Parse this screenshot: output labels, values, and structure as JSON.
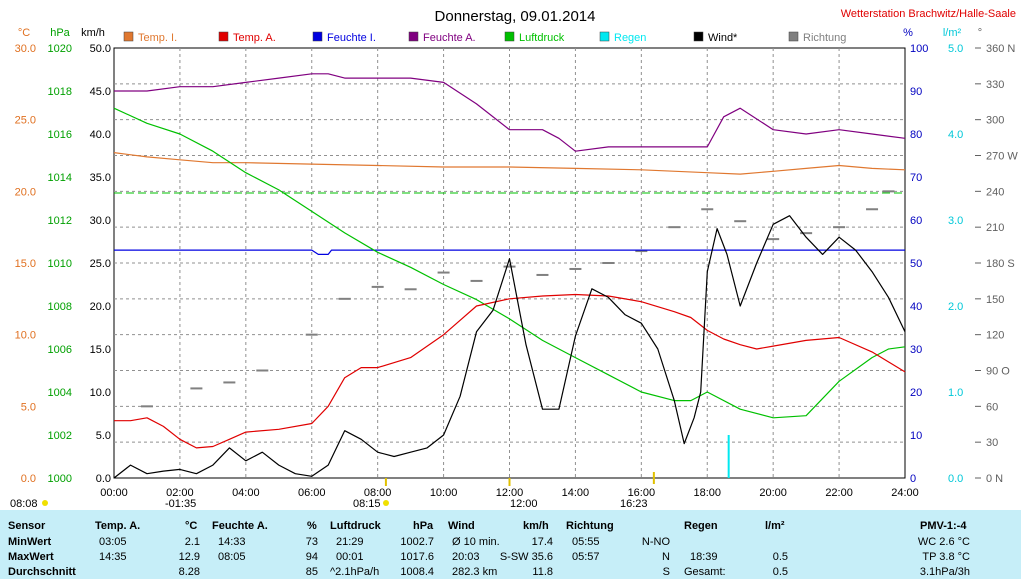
{
  "chart_data": {
    "type": "line",
    "title": "Donnerstag, 09.01.2014",
    "station": "Wetterstation Brachwitz/Halle-Saale",
    "xlabel": "",
    "x_ticks": [
      "00:00",
      "02:00",
      "04:00",
      "06:00",
      "08:00",
      "10:00",
      "12:00",
      "14:00",
      "16:00",
      "18:00",
      "20:00",
      "22:00",
      "24:00"
    ],
    "axes": {
      "temp": {
        "unit": "°C",
        "ticks": [
          "0.0",
          "5.0",
          "10.0",
          "15.0",
          "20.0",
          "25.0",
          "30.0"
        ],
        "range": [
          0,
          30
        ],
        "color": "#e07020"
      },
      "pressure": {
        "unit": "hPa",
        "ticks": [
          "1000",
          "1002",
          "1004",
          "1006",
          "1008",
          "1010",
          "1012",
          "1014",
          "1016",
          "1018",
          "1020"
        ],
        "range": [
          1000,
          1020
        ],
        "color": "#00a000"
      },
      "wind": {
        "unit": "km/h",
        "ticks": [
          "0.0",
          "5.0",
          "10.0",
          "15.0",
          "20.0",
          "25.0",
          "30.0",
          "35.0",
          "40.0",
          "45.0",
          "50.0"
        ],
        "range": [
          0,
          50
        ],
        "color": "#000000"
      },
      "humidity": {
        "unit": "%",
        "ticks": [
          "0",
          "10",
          "20",
          "30",
          "40",
          "50",
          "60",
          "70",
          "80",
          "90",
          "100"
        ],
        "range": [
          0,
          100
        ],
        "color": "#0000c0"
      },
      "rain": {
        "unit": "l/m²",
        "ticks": [
          "0.0",
          "1.0",
          "2.0",
          "3.0",
          "4.0",
          "5.0"
        ],
        "range": [
          0,
          5
        ],
        "color": "#00c8d8"
      },
      "direction": {
        "unit": "°",
        "ticks": [
          "0 N",
          "30",
          "60",
          "90 O",
          "120",
          "150",
          "180 S",
          "210",
          "240",
          "270 W",
          "300",
          "330",
          "360 N"
        ],
        "range": [
          0,
          360
        ],
        "color": "#606060"
      }
    },
    "legend": [
      {
        "label": "Temp. I.",
        "color": "#e07830"
      },
      {
        "label": "Temp. A.",
        "color": "#e00000"
      },
      {
        "label": "Feuchte I.",
        "color": "#0000e0"
      },
      {
        "label": "Feuchte A.",
        "color": "#800080"
      },
      {
        "label": "Luftdruck",
        "color": "#00c000"
      },
      {
        "label": "Regen",
        "color": "#00e8f0"
      },
      {
        "label": "Wind*",
        "color": "#000000"
      },
      {
        "label": "Richtung",
        "color": "#808080"
      }
    ],
    "series": [
      {
        "name": "Temp. I.",
        "axis": "temp",
        "color": "#e07830",
        "x": [
          0,
          1,
          2,
          3,
          4,
          6,
          8,
          10,
          12,
          14,
          16,
          18,
          19,
          20,
          21,
          22,
          23,
          24
        ],
        "y": [
          22.7,
          22.4,
          22.2,
          22.0,
          22.0,
          21.9,
          21.8,
          21.7,
          21.7,
          21.6,
          21.5,
          21.3,
          21.2,
          21.4,
          21.6,
          21.8,
          21.6,
          21.5
        ]
      },
      {
        "name": "Temp. A.",
        "axis": "temp",
        "color": "#e00000",
        "x": [
          0,
          0.5,
          1,
          1.5,
          2,
          2.5,
          3,
          3.5,
          4,
          5,
          6,
          6.5,
          7,
          7.5,
          8,
          9,
          10,
          10.5,
          11,
          12,
          13,
          14,
          15,
          16,
          17,
          17.5,
          18,
          18.5,
          19,
          19.5,
          20,
          21,
          22,
          23,
          24
        ],
        "y": [
          4.0,
          4.0,
          4.2,
          3.6,
          2.7,
          2.1,
          2.2,
          2.7,
          3.2,
          3.4,
          3.8,
          5.0,
          7.0,
          7.7,
          7.7,
          8.4,
          10.0,
          11.0,
          12.0,
          12.5,
          12.7,
          12.8,
          12.7,
          12.3,
          11.6,
          11.2,
          10.3,
          9.7,
          9.3,
          9.0,
          9.2,
          9.6,
          9.8,
          8.8,
          7.4
        ]
      },
      {
        "name": "Feuchte I.",
        "axis": "humidity",
        "color": "#0000e0",
        "x": [
          0,
          6,
          6.2,
          6.5,
          6.6,
          24
        ],
        "y": [
          53,
          53,
          52,
          52,
          53,
          53
        ]
      },
      {
        "name": "Feuchte A.",
        "axis": "humidity",
        "color": "#800080",
        "x": [
          0,
          0.3,
          1,
          2,
          3,
          4,
          5,
          6,
          6.5,
          7,
          8,
          9,
          10,
          11,
          12,
          13,
          13.5,
          14,
          15,
          16,
          17,
          18,
          18.5,
          19,
          20,
          21,
          22,
          23,
          24
        ],
        "y": [
          90,
          90,
          90,
          91,
          91,
          92,
          93,
          94,
          94,
          93,
          93,
          93,
          92,
          87,
          81,
          81,
          79,
          76,
          77,
          77,
          77,
          77,
          84,
          86,
          81,
          80,
          81,
          80,
          79
        ]
      },
      {
        "name": "Luftdruck",
        "axis": "pressure",
        "color": "#00c000",
        "x": [
          0,
          1,
          2,
          3,
          4,
          5,
          6,
          7,
          8,
          9,
          10,
          11,
          12,
          13,
          14,
          15,
          16,
          17,
          17.5,
          18,
          19,
          20,
          21,
          22,
          23,
          23.5,
          24
        ],
        "y": [
          1017.2,
          1016.5,
          1016.0,
          1015.2,
          1014.2,
          1013.4,
          1012.4,
          1011.4,
          1010.5,
          1009.8,
          1009.0,
          1008.3,
          1007.4,
          1006.4,
          1005.6,
          1004.8,
          1004.0,
          1003.6,
          1003.6,
          1004.0,
          1003.2,
          1002.8,
          1002.9,
          1004.5,
          1005.6,
          1006.0,
          1006.1
        ]
      },
      {
        "name": "Wind*",
        "axis": "wind",
        "color": "#000000",
        "x": [
          0,
          0.5,
          1,
          1.5,
          2,
          2.5,
          3,
          3.5,
          4,
          4.5,
          5,
          5.5,
          6,
          6.5,
          7,
          7.5,
          8,
          8.5,
          9,
          9.5,
          10,
          10.5,
          11,
          11.5,
          12,
          12.5,
          13,
          13.5,
          14,
          14.5,
          15,
          15.5,
          16,
          16.5,
          17,
          17.3,
          17.6,
          17.8,
          18,
          18.3,
          18.6,
          19,
          19.5,
          20,
          20.5,
          21,
          21.5,
          22,
          22.5,
          23,
          23.5,
          24
        ],
        "y": [
          0,
          1.5,
          0.5,
          0.8,
          1.0,
          0.5,
          1.5,
          3.5,
          2.0,
          3.0,
          1.5,
          0.5,
          0.2,
          1.5,
          5.5,
          4.5,
          3.0,
          2.5,
          3.0,
          3.5,
          5.0,
          9.5,
          17.0,
          19.5,
          25.5,
          15.5,
          8.0,
          8.0,
          16.5,
          22.0,
          21.0,
          19.0,
          18.0,
          15.0,
          9.0,
          4.0,
          7.0,
          10.0,
          24.0,
          29.0,
          26.0,
          20.0,
          25.0,
          29.5,
          30.5,
          28.0,
          26.0,
          28.0,
          26.5,
          24.0,
          21.0,
          17.0
        ]
      },
      {
        "name": "Regen",
        "axis": "rain",
        "color": "#00e8f0",
        "x": [
          18.65
        ],
        "y": [
          0.5
        ]
      },
      {
        "name": "Richtung",
        "axis": "direction",
        "color": "#808080",
        "x": [
          1,
          2.5,
          3.5,
          4.5,
          6,
          7,
          8,
          9,
          10,
          11,
          12,
          13,
          14,
          15,
          16,
          17,
          18,
          19,
          20,
          21,
          22,
          23,
          23.5
        ],
        "y": [
          60,
          75,
          80,
          90,
          120,
          150,
          160,
          158,
          172,
          165,
          177,
          170,
          175,
          180,
          190,
          210,
          225,
          215,
          200,
          205,
          210,
          225,
          240
        ]
      }
    ],
    "footer_marks": {
      "sunrise": "08:15",
      "noon": "12:00",
      "sunset": "16:23",
      "left_time": "08:08",
      "night_mark": "-01:35"
    }
  },
  "table": {
    "headers": {
      "sensor": "Sensor",
      "temp": "Temp. A.",
      "temp_unit": "°C",
      "hum": "Feuchte A.",
      "hum_unit": "%",
      "press": "Luftdruck",
      "press_unit": "hPa",
      "wind": "Wind",
      "wind_unit": "km/h",
      "dir": "Richtung",
      "rain": "Regen",
      "rain_unit": "l/m²",
      "pmv": "PMV-1:-4"
    },
    "rows": [
      {
        "label": "MinWert",
        "temp_time": "03:05",
        "temp_val": "2.1",
        "hum_time": "14:33",
        "hum_val": "73",
        "press_time": "21:29",
        "press_val": "1002.7",
        "wind_time": "Ø 10 min.",
        "wind_val": "17.4",
        "dir_time": "05:55",
        "dir_val": "N-NO",
        "rain_time": "",
        "rain_val": "",
        "pmv": "WC 2.6 °C"
      },
      {
        "label": "MaxWert",
        "temp_time": "14:35",
        "temp_val": "12.9",
        "hum_time": "08:05",
        "hum_val": "94",
        "press_time": "00:01",
        "press_val": "1017.6",
        "wind_time": "20:03",
        "wind_val": "S-SW 35.6",
        "dir_time": "05:57",
        "dir_val": "N",
        "rain_time": "18:39",
        "rain_val": "0.5",
        "pmv": "TP 3.8 °C"
      },
      {
        "label": "Durchschnitt",
        "temp_time": "",
        "temp_val": "8.28",
        "hum_time": "",
        "hum_val": "85",
        "press_time": "^2.1hPa/h",
        "press_val": "1008.4",
        "wind_time": "282.3 km",
        "wind_val": "11.8",
        "dir_time": "",
        "dir_val": "S",
        "rain_time": "Gesamt:",
        "rain_val": "0.5",
        "pmv": "3.1hPa/3h"
      }
    ]
  }
}
